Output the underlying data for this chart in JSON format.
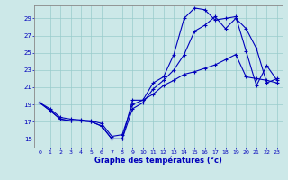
{
  "background_color": "#cce8e8",
  "grid_color": "#99cccc",
  "line_color": "#0000bb",
  "ylim": [
    14.0,
    30.5
  ],
  "xlim": [
    -0.5,
    23.5
  ],
  "yticks": [
    15,
    17,
    19,
    21,
    23,
    25,
    27,
    29
  ],
  "xticks": [
    0,
    1,
    2,
    3,
    4,
    5,
    6,
    7,
    8,
    9,
    10,
    11,
    12,
    13,
    14,
    15,
    16,
    17,
    18,
    19,
    20,
    21,
    22,
    23
  ],
  "xlabel": "Graphe des températures (°c)",
  "line1_x": [
    0,
    1,
    2,
    3,
    4,
    5,
    6,
    7,
    8,
    9,
    10,
    11,
    12,
    13,
    14,
    15,
    16,
    17,
    18,
    19,
    20,
    21,
    22,
    23
  ],
  "line1_y": [
    19.2,
    18.3,
    17.3,
    17.1,
    17.1,
    17.0,
    16.5,
    15.0,
    15.0,
    19.5,
    19.5,
    21.5,
    22.2,
    24.8,
    29.0,
    30.2,
    30.0,
    28.8,
    29.0,
    29.2,
    25.2,
    21.2,
    23.5,
    21.8
  ],
  "line2_x": [
    0,
    1,
    2,
    3,
    4,
    5,
    6,
    7,
    8,
    9,
    10,
    11,
    12,
    13,
    14,
    15,
    16,
    17,
    18,
    19,
    20,
    21,
    22,
    23
  ],
  "line2_y": [
    19.2,
    18.3,
    17.3,
    17.1,
    17.1,
    17.0,
    16.5,
    15.0,
    15.0,
    18.5,
    19.2,
    20.8,
    21.8,
    23.0,
    24.8,
    27.5,
    28.2,
    29.2,
    27.8,
    29.0,
    27.8,
    25.5,
    21.5,
    22.0
  ],
  "line3_x": [
    0,
    1,
    2,
    3,
    4,
    5,
    6,
    7,
    8,
    9,
    10,
    11,
    12,
    13,
    14,
    15,
    16,
    17,
    18,
    19,
    20,
    21,
    22,
    23
  ],
  "line3_y": [
    19.2,
    18.5,
    17.5,
    17.3,
    17.2,
    17.1,
    16.8,
    15.3,
    15.5,
    19.0,
    19.5,
    20.2,
    21.2,
    21.8,
    22.5,
    22.8,
    23.2,
    23.6,
    24.2,
    24.8,
    22.2,
    22.0,
    21.8,
    21.5
  ]
}
